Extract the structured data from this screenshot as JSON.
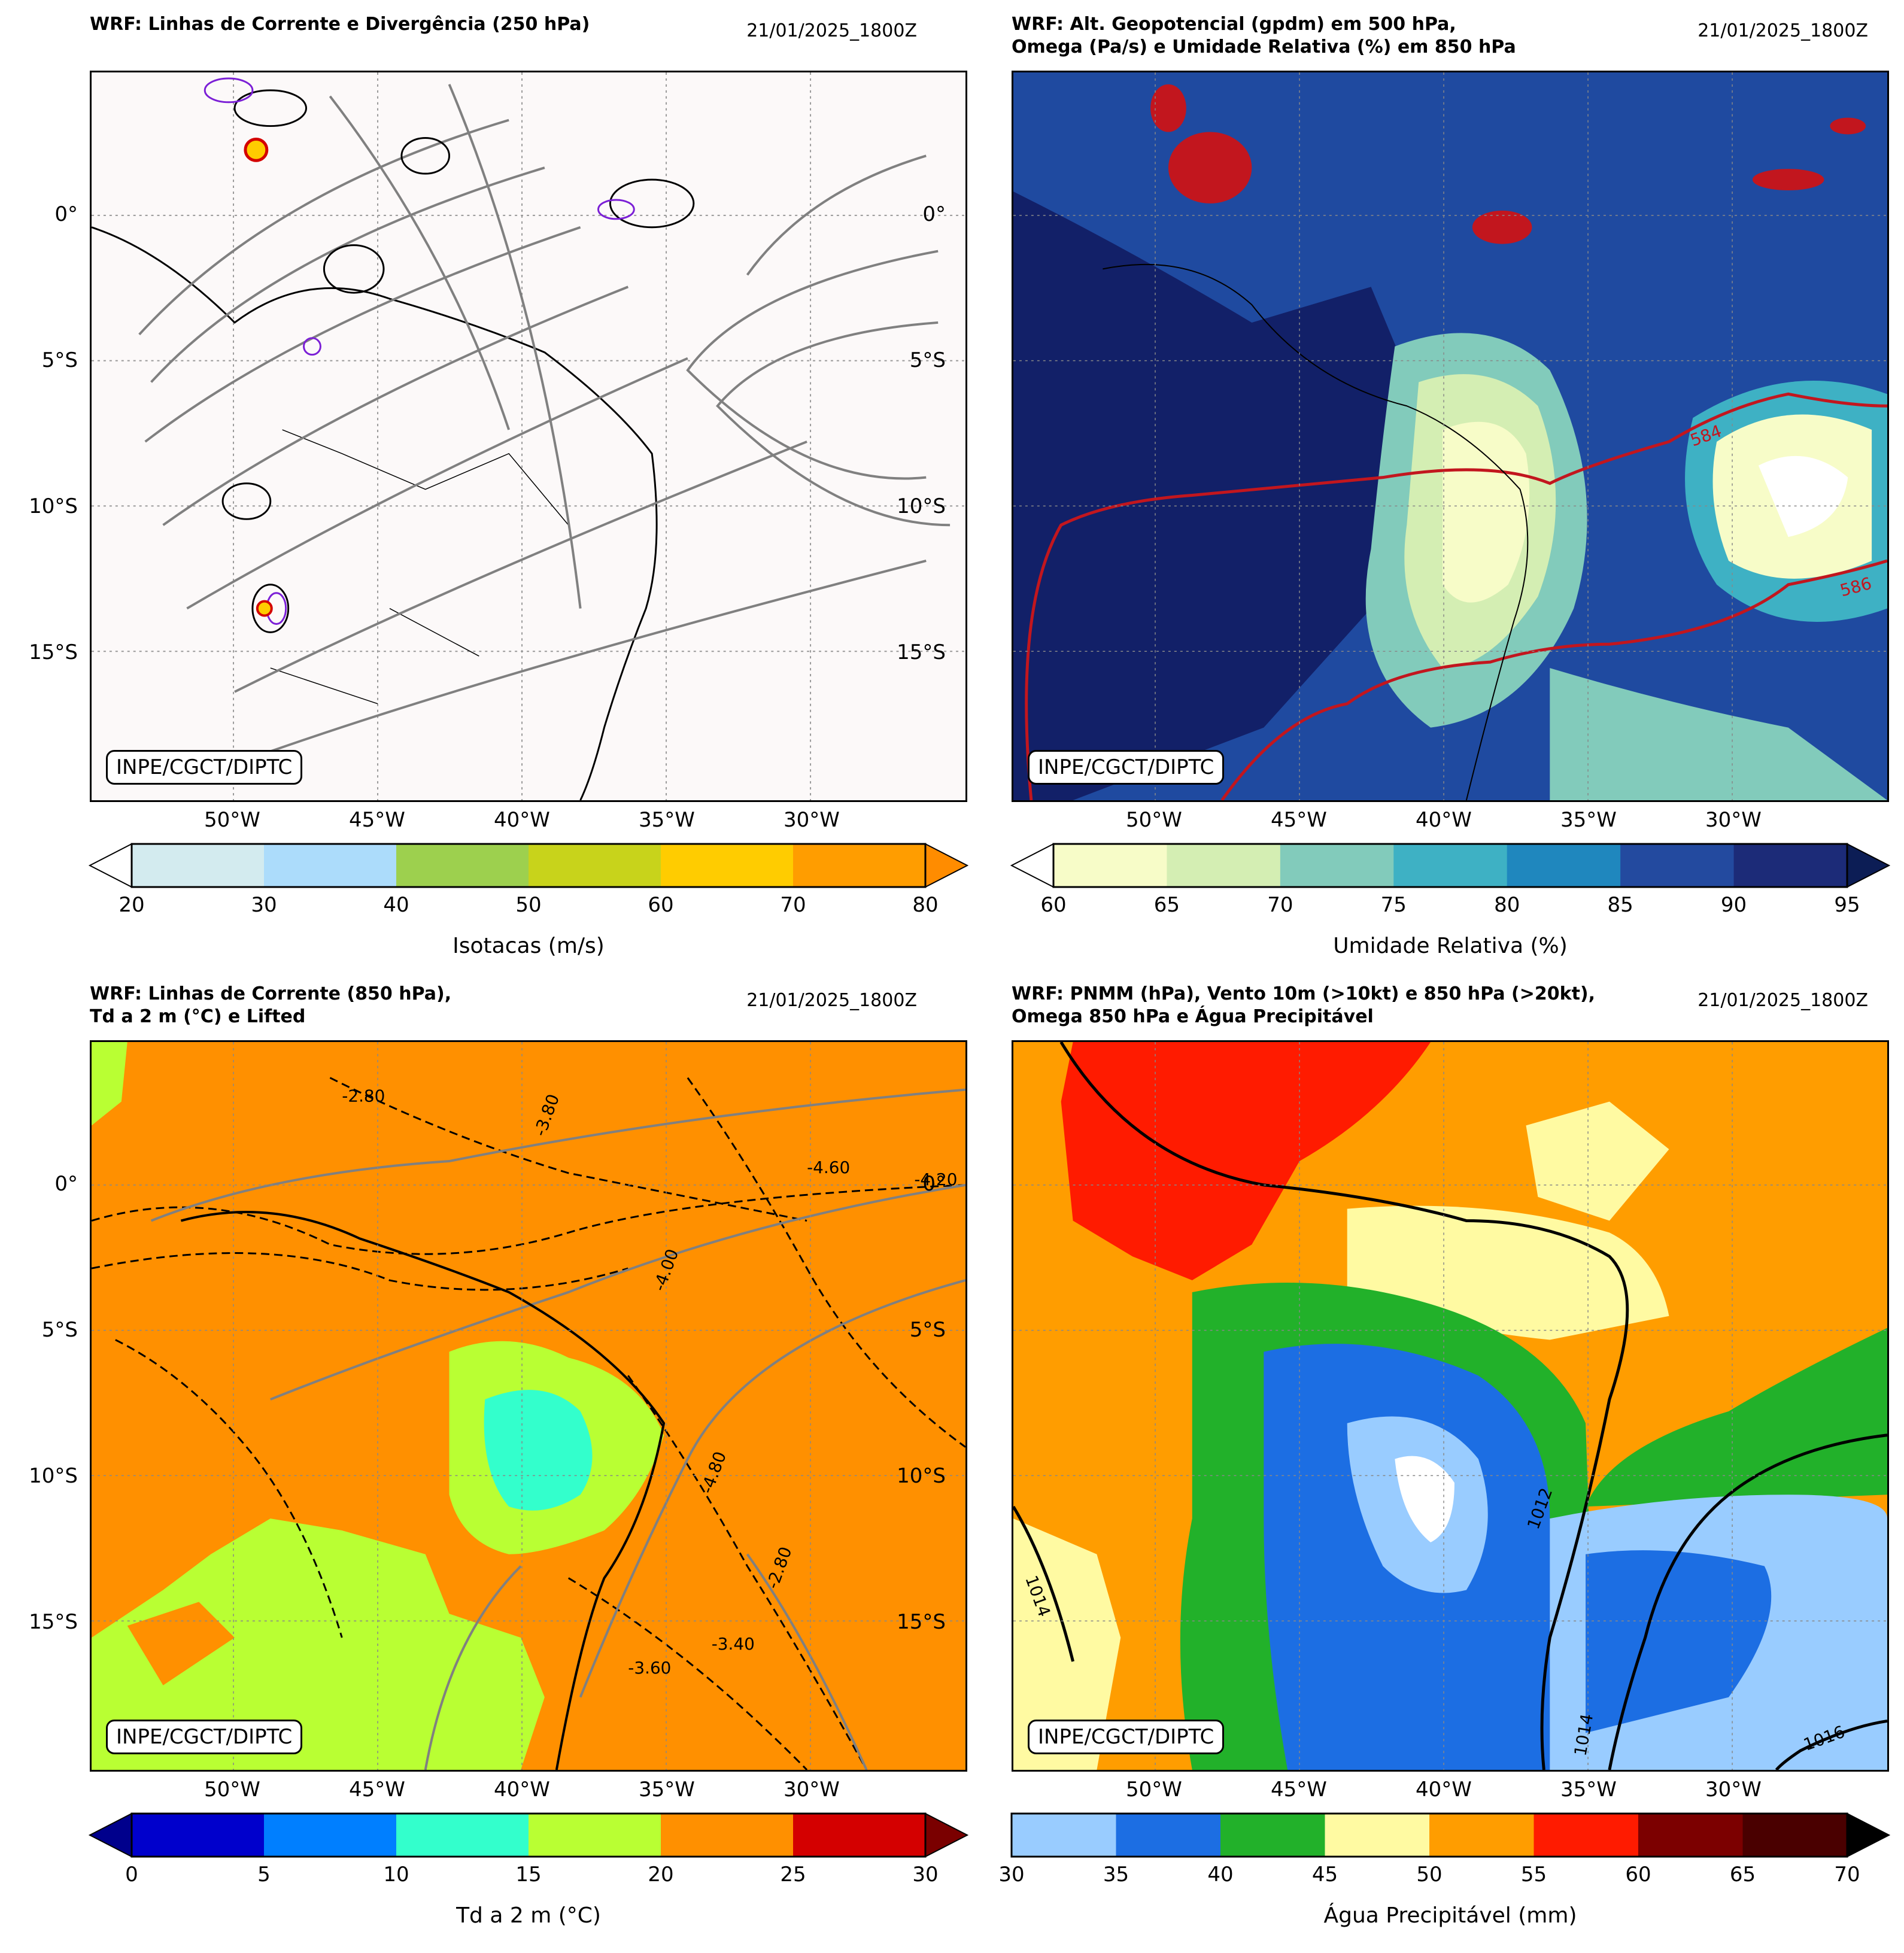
{
  "panels": [
    {
      "id": "p1",
      "title": "WRF: Linhas de Corrente e Divergência (250 hPa)",
      "date": "21/01/2025_1800Z",
      "background": "#fcf9f9",
      "credit": "INPE/CGCT/DIPTC",
      "lat_labels": [
        "0°",
        "5°S",
        "10°S",
        "15°S"
      ],
      "lon_labels": [
        "50°W",
        "45°W",
        "40°W",
        "35°W",
        "30°W"
      ],
      "colorbar": {
        "label": "Isotacas (m/s)",
        "ticks": [
          "20",
          "30",
          "40",
          "50",
          "60",
          "70",
          "80"
        ],
        "colors": [
          "#d3ebef",
          "#acdcfb",
          "#9dd04e",
          "#c8d31b",
          "#ffcc00",
          "#ff9d00"
        ],
        "over_color": "#ff8c00",
        "under_color": "#ffffff",
        "extend": "both"
      }
    },
    {
      "id": "p2",
      "title": "WRF: Alt. Geopotencial (gpdm) em 500 hPa,\nOmega (Pa/s) e Umidade Relativa (%) em 850 hPa",
      "date": "21/01/2025_1800Z",
      "background": "#1b3b8c",
      "credit": "INPE/CGCT/DIPTC",
      "lat_labels": [
        "0°",
        "5°S",
        "10°S",
        "15°S"
      ],
      "lon_labels": [
        "50°W",
        "45°W",
        "40°W",
        "35°W",
        "30°W"
      ],
      "contour_labels": [
        "584",
        "586"
      ],
      "colorbar": {
        "label": "Umidade Relativa (%)",
        "ticks": [
          "60",
          "65",
          "70",
          "75",
          "80",
          "85",
          "90",
          "95"
        ],
        "colors": [
          "#f7fcc8",
          "#d4eeb3",
          "#82cbbb",
          "#3eb1c4",
          "#1f87be",
          "#234a9f",
          "#1c2b78"
        ],
        "over_color": "#0c1d55",
        "under_color": "#ffffff",
        "extend": "both"
      }
    },
    {
      "id": "p3",
      "title": "WRF: Linhas de Corrente (850 hPa),\nTd a 2 m (°C) e Lifted",
      "date": "21/01/2025_1800Z",
      "background": "#ff9000",
      "credit": "INPE/CGCT/DIPTC",
      "lat_labels": [
        "0°",
        "5°S",
        "10°S",
        "15°S"
      ],
      "lon_labels": [
        "50°W",
        "45°W",
        "40°W",
        "35°W",
        "30°W"
      ],
      "contour_labels": [
        "-2.80",
        "-3.60",
        "-4.00",
        "-4.20",
        "-4.60",
        "-3.80",
        "-4.80",
        "-3.40",
        "-2.80"
      ],
      "colorbar": {
        "label": "Td a 2 m (°C)",
        "ticks": [
          "0",
          "5",
          "10",
          "15",
          "20",
          "25",
          "30"
        ],
        "colors": [
          "#0000cc",
          "#007fff",
          "#33ffcc",
          "#b9ff33",
          "#ff9000",
          "#d40000"
        ],
        "over_color": "#7a0000",
        "under_color": "#00008c",
        "extend": "both"
      }
    },
    {
      "id": "p4",
      "title": "WRF: PNMM (hPa), Vento 10m (>10kt) e 850 hPa (>20kt),\nOmega 850 hPa e Água Precipitável",
      "date": "21/01/2025_1800Z",
      "background": "#ff9d00",
      "credit": "INPE/CGCT/DIPTC",
      "lat_labels": [
        "0°",
        "5°S",
        "10°S",
        "15°S"
      ],
      "lon_labels": [
        "50°W",
        "45°W",
        "40°W",
        "35°W",
        "30°W"
      ],
      "contour_labels": [
        "1014",
        "1012",
        "1014",
        "1016"
      ],
      "colorbar": {
        "label": "Água Precipitável (mm)",
        "ticks": [
          "30",
          "35",
          "40",
          "45",
          "50",
          "55",
          "60",
          "65",
          "70"
        ],
        "colors": [
          "#99ccff",
          "#1c6ee3",
          "#22b12a",
          "#fffaa2",
          "#ff9d00",
          "#ff1b00",
          "#7c0000",
          "#4a0000"
        ],
        "over_color": "#000000",
        "under_color": "#ffffff",
        "extend": "max"
      }
    }
  ]
}
